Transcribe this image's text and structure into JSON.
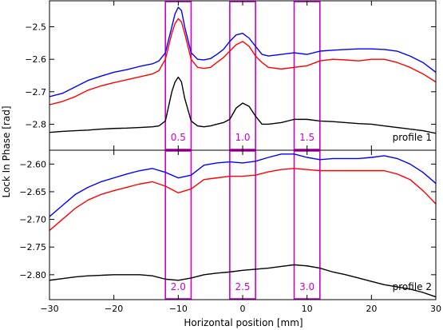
{
  "chart_data": {
    "type": "line",
    "xlabel": "Horizontal position [mm]",
    "ylabel": "Lock In Phase [rad]",
    "xlim": [
      -30,
      30
    ],
    "xticks": [
      -30,
      -20,
      -10,
      0,
      10,
      20,
      30
    ],
    "region_color": "#cc00cc",
    "panels": [
      {
        "label": "profile 1",
        "ylim": [
          -2.88,
          -2.42
        ],
        "yticks": [
          -2.8,
          -2.7,
          -2.6,
          -2.5
        ],
        "ytick_labels": [
          "−2.8",
          "−2.7",
          "−2.6",
          "−2.5"
        ],
        "regions": [
          {
            "x0": -12,
            "x1": -8,
            "label": "0.5"
          },
          {
            "x0": -2,
            "x1": 2,
            "label": "1.0"
          },
          {
            "x0": 8,
            "x1": 12,
            "label": "1.5"
          }
        ],
        "series": [
          {
            "color": "#0000ff",
            "x": [
              -30,
              -28,
              -26,
              -24,
              -22,
              -20,
              -18,
              -16,
              -14,
              -13,
              -12,
              -11,
              -10.5,
              -10,
              -9.5,
              -9,
              -8,
              -7,
              -6,
              -5,
              -4,
              -3,
              -2,
              -1,
              0,
              1,
              2,
              3,
              4,
              6,
              8,
              10,
              12,
              14,
              16,
              18,
              20,
              22,
              24,
              26,
              28,
              30
            ],
            "y": [
              -2.715,
              -2.705,
              -2.685,
              -2.665,
              -2.652,
              -2.64,
              -2.632,
              -2.622,
              -2.614,
              -2.605,
              -2.58,
              -2.5,
              -2.46,
              -2.44,
              -2.45,
              -2.5,
              -2.58,
              -2.6,
              -2.602,
              -2.598,
              -2.585,
              -2.57,
              -2.545,
              -2.525,
              -2.52,
              -2.535,
              -2.56,
              -2.585,
              -2.59,
              -2.585,
              -2.58,
              -2.585,
              -2.575,
              -2.572,
              -2.57,
              -2.568,
              -2.568,
              -2.57,
              -2.575,
              -2.59,
              -2.61,
              -2.64
            ]
          },
          {
            "color": "#ff0000",
            "x": [
              -30,
              -28,
              -26,
              -24,
              -22,
              -20,
              -18,
              -16,
              -14,
              -13,
              -12,
              -11,
              -10.5,
              -10,
              -9.5,
              -9,
              -8,
              -7,
              -6,
              -5,
              -4,
              -3,
              -2,
              -1,
              0,
              1,
              2,
              3,
              4,
              6,
              8,
              10,
              12,
              14,
              16,
              18,
              20,
              22,
              24,
              26,
              28,
              30
            ],
            "y": [
              -2.74,
              -2.73,
              -2.715,
              -2.695,
              -2.682,
              -2.672,
              -2.663,
              -2.654,
              -2.645,
              -2.635,
              -2.6,
              -2.52,
              -2.49,
              -2.475,
              -2.485,
              -2.52,
              -2.6,
              -2.625,
              -2.628,
              -2.625,
              -2.61,
              -2.595,
              -2.575,
              -2.555,
              -2.545,
              -2.56,
              -2.59,
              -2.61,
              -2.625,
              -2.63,
              -2.625,
              -2.62,
              -2.605,
              -2.6,
              -2.602,
              -2.605,
              -2.6,
              -2.6,
              -2.61,
              -2.625,
              -2.645,
              -2.67
            ]
          },
          {
            "color": "#000000",
            "x": [
              -30,
              -28,
              -26,
              -24,
              -22,
              -20,
              -18,
              -16,
              -14,
              -13,
              -12,
              -11,
              -10.5,
              -10,
              -9.5,
              -9,
              -8,
              -7,
              -6,
              -5,
              -4,
              -3,
              -2,
              -1,
              0,
              1,
              2,
              3,
              4,
              6,
              8,
              10,
              12,
              14,
              16,
              18,
              20,
              22,
              24,
              26,
              28,
              30
            ],
            "y": [
              -2.825,
              -2.822,
              -2.82,
              -2.818,
              -2.815,
              -2.813,
              -2.812,
              -2.81,
              -2.808,
              -2.805,
              -2.79,
              -2.7,
              -2.67,
              -2.655,
              -2.67,
              -2.72,
              -2.79,
              -2.805,
              -2.808,
              -2.805,
              -2.8,
              -2.795,
              -2.785,
              -2.75,
              -2.735,
              -2.745,
              -2.775,
              -2.8,
              -2.8,
              -2.795,
              -2.785,
              -2.785,
              -2.79,
              -2.792,
              -2.795,
              -2.798,
              -2.8,
              -2.805,
              -2.81,
              -2.815,
              -2.82,
              -2.828
            ]
          }
        ]
      },
      {
        "label": "profile 2",
        "ylim": [
          -2.845,
          -2.575
        ],
        "yticks": [
          -2.8,
          -2.75,
          -2.7,
          -2.65,
          -2.6
        ],
        "ytick_labels": [
          "−2.80",
          "−2.75",
          "−2.70",
          "−2.65",
          "−2.60"
        ],
        "regions": [
          {
            "x0": -12,
            "x1": -8,
            "label": "2.0"
          },
          {
            "x0": -2,
            "x1": 2,
            "label": "2.5"
          },
          {
            "x0": 8,
            "x1": 12,
            "label": "3.0"
          }
        ],
        "series": [
          {
            "color": "#0000ff",
            "x": [
              -30,
              -28,
              -26,
              -24,
              -22,
              -20,
              -18,
              -16,
              -14,
              -12,
              -10,
              -8,
              -6,
              -4,
              -2,
              0,
              2,
              4,
              6,
              8,
              10,
              12,
              14,
              16,
              18,
              20,
              22,
              24,
              26,
              28,
              30
            ],
            "y": [
              -2.695,
              -2.675,
              -2.655,
              -2.642,
              -2.632,
              -2.625,
              -2.618,
              -2.612,
              -2.608,
              -2.615,
              -2.625,
              -2.62,
              -2.602,
              -2.598,
              -2.596,
              -2.598,
              -2.595,
              -2.588,
              -2.582,
              -2.582,
              -2.588,
              -2.592,
              -2.59,
              -2.59,
              -2.59,
              -2.588,
              -2.585,
              -2.59,
              -2.6,
              -2.615,
              -2.635
            ]
          },
          {
            "color": "#ff0000",
            "x": [
              -30,
              -28,
              -26,
              -24,
              -22,
              -20,
              -18,
              -16,
              -14,
              -12,
              -10,
              -8,
              -6,
              -4,
              -2,
              0,
              2,
              4,
              6,
              8,
              10,
              12,
              14,
              16,
              18,
              20,
              22,
              24,
              26,
              28,
              30
            ],
            "y": [
              -2.72,
              -2.7,
              -2.68,
              -2.665,
              -2.655,
              -2.648,
              -2.642,
              -2.636,
              -2.632,
              -2.64,
              -2.652,
              -2.645,
              -2.628,
              -2.625,
              -2.622,
              -2.622,
              -2.62,
              -2.614,
              -2.61,
              -2.608,
              -2.61,
              -2.612,
              -2.612,
              -2.612,
              -2.612,
              -2.612,
              -2.612,
              -2.618,
              -2.628,
              -2.648,
              -2.672
            ]
          },
          {
            "color": "#000000",
            "x": [
              -30,
              -28,
              -26,
              -24,
              -22,
              -20,
              -18,
              -16,
              -14,
              -12,
              -10,
              -8,
              -6,
              -4,
              -2,
              0,
              2,
              4,
              6,
              8,
              10,
              12,
              14,
              16,
              18,
              20,
              22,
              24,
              26,
              28,
              30
            ],
            "y": [
              -2.81,
              -2.807,
              -2.804,
              -2.802,
              -2.801,
              -2.8,
              -2.8,
              -2.8,
              -2.802,
              -2.808,
              -2.81,
              -2.806,
              -2.8,
              -2.797,
              -2.795,
              -2.792,
              -2.79,
              -2.788,
              -2.785,
              -2.782,
              -2.784,
              -2.788,
              -2.795,
              -2.8,
              -2.806,
              -2.812,
              -2.818,
              -2.822,
              -2.826,
              -2.832,
              -2.84
            ]
          }
        ]
      }
    ]
  }
}
